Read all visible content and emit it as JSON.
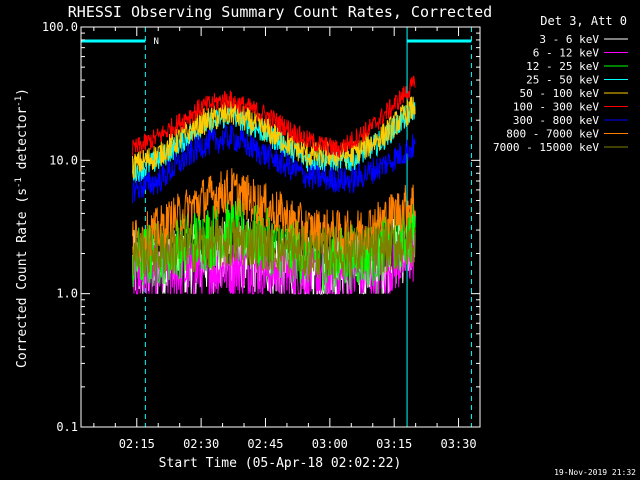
{
  "chart_data": {
    "type": "line",
    "title": "RHESSI Observing Summary Count Rates, Corrected",
    "xlabel": "Start Time (05-Apr-18 02:02:22)",
    "ylabel": "Corrected Count Rate (s",
    "ylabel_sup": "-1",
    "ylabel_mid": " detector",
    "ylabel_sup2": "-1",
    "ylabel_end": ")",
    "y_scale": "log",
    "ylim": [
      0.1,
      100.0
    ],
    "y_ticks": [
      {
        "value": 0.1,
        "label": "0.1"
      },
      {
        "value": 1.0,
        "label": "1.0"
      },
      {
        "value": 10.0,
        "label": "10.0"
      },
      {
        "value": 100.0,
        "label": "100.0"
      }
    ],
    "xlim_minutes": [
      2.0,
      95.0
    ],
    "x_ticks": [
      {
        "minute": 15,
        "label": "02:15"
      },
      {
        "minute": 30,
        "label": "02:30"
      },
      {
        "minute": 45,
        "label": "02:45"
      },
      {
        "minute": 60,
        "label": "03:00"
      },
      {
        "minute": 75,
        "label": "03:15"
      },
      {
        "minute": 90,
        "label": "03:30"
      }
    ],
    "legend_header": "Det 3, Att 0",
    "legend_placement": "right",
    "night_periods": [
      [
        2.0,
        17.0
      ],
      [
        78.0,
        93.0
      ]
    ],
    "saa_marker": {
      "minute": 17.5,
      "label": "N"
    },
    "data_start_minute": 14.0,
    "data_end_minute": 80.0,
    "series": [
      {
        "name": "3 - 6 keV",
        "color": "#ffffff",
        "points": [
          [
            14,
            1.6
          ],
          [
            20,
            1.6
          ],
          [
            30,
            1.8
          ],
          [
            40,
            2.0
          ],
          [
            50,
            1.6
          ],
          [
            60,
            1.5
          ],
          [
            70,
            1.6
          ],
          [
            80,
            2.5
          ]
        ],
        "noise": 0.55
      },
      {
        "name": "6 - 12 keV",
        "color": "#ff00ff",
        "points": [
          [
            14,
            1.3
          ],
          [
            20,
            1.4
          ],
          [
            30,
            1.5
          ],
          [
            40,
            1.6
          ],
          [
            50,
            1.4
          ],
          [
            60,
            1.3
          ],
          [
            70,
            1.4
          ],
          [
            80,
            2.0
          ]
        ],
        "noise": 0.45
      },
      {
        "name": "12 - 25 keV",
        "color": "#00ff00",
        "points": [
          [
            14,
            1.8
          ],
          [
            20,
            2.0
          ],
          [
            30,
            2.6
          ],
          [
            38,
            3.0
          ],
          [
            50,
            2.2
          ],
          [
            60,
            1.8
          ],
          [
            70,
            2.0
          ],
          [
            80,
            3.0
          ]
        ],
        "noise": 0.5
      },
      {
        "name": "25 - 50 keV",
        "color": "#00ffff",
        "points": [
          [
            14,
            8
          ],
          [
            20,
            10
          ],
          [
            30,
            18
          ],
          [
            37,
            22
          ],
          [
            45,
            16
          ],
          [
            55,
            10
          ],
          [
            65,
            10
          ],
          [
            72,
            14
          ],
          [
            80,
            25
          ]
        ],
        "noise": 0.18
      },
      {
        "name": "50 - 100 keV",
        "color": "#ffcc00",
        "points": [
          [
            14,
            9
          ],
          [
            20,
            11
          ],
          [
            30,
            19
          ],
          [
            37,
            23
          ],
          [
            45,
            17
          ],
          [
            55,
            11
          ],
          [
            65,
            11
          ],
          [
            72,
            15
          ],
          [
            80,
            26
          ]
        ],
        "noise": 0.2
      },
      {
        "name": "100 - 300 keV",
        "color": "#ff0000",
        "points": [
          [
            14,
            12
          ],
          [
            20,
            15
          ],
          [
            30,
            25
          ],
          [
            36,
            29
          ],
          [
            45,
            22
          ],
          [
            55,
            14
          ],
          [
            62,
            12
          ],
          [
            70,
            18
          ],
          [
            80,
            38
          ]
        ],
        "noise": 0.15
      },
      {
        "name": "300 - 800 keV",
        "color": "#0000ff",
        "points": [
          [
            14,
            6
          ],
          [
            20,
            7
          ],
          [
            30,
            13
          ],
          [
            37,
            15
          ],
          [
            45,
            11
          ],
          [
            55,
            7.5
          ],
          [
            65,
            7
          ],
          [
            72,
            9
          ],
          [
            80,
            13
          ]
        ],
        "noise": 0.2
      },
      {
        "name": "800 - 7000 keV",
        "color": "#ff8000",
        "points": [
          [
            14,
            2.5
          ],
          [
            20,
            3.0
          ],
          [
            30,
            5
          ],
          [
            37,
            6
          ],
          [
            45,
            4.5
          ],
          [
            55,
            3.0
          ],
          [
            65,
            2.8
          ],
          [
            72,
            3.5
          ],
          [
            80,
            5
          ]
        ],
        "noise": 0.35
      },
      {
        "name": "7000 - 15000 keV",
        "color": "#808000",
        "points": [
          [
            14,
            2.0
          ],
          [
            30,
            2.3
          ],
          [
            40,
            2.5
          ],
          [
            55,
            2.0
          ],
          [
            70,
            2.1
          ],
          [
            80,
            2.5
          ]
        ],
        "noise": 0.4
      }
    ]
  },
  "footer": {
    "timestamp": "19-Nov-2019 21:32"
  }
}
